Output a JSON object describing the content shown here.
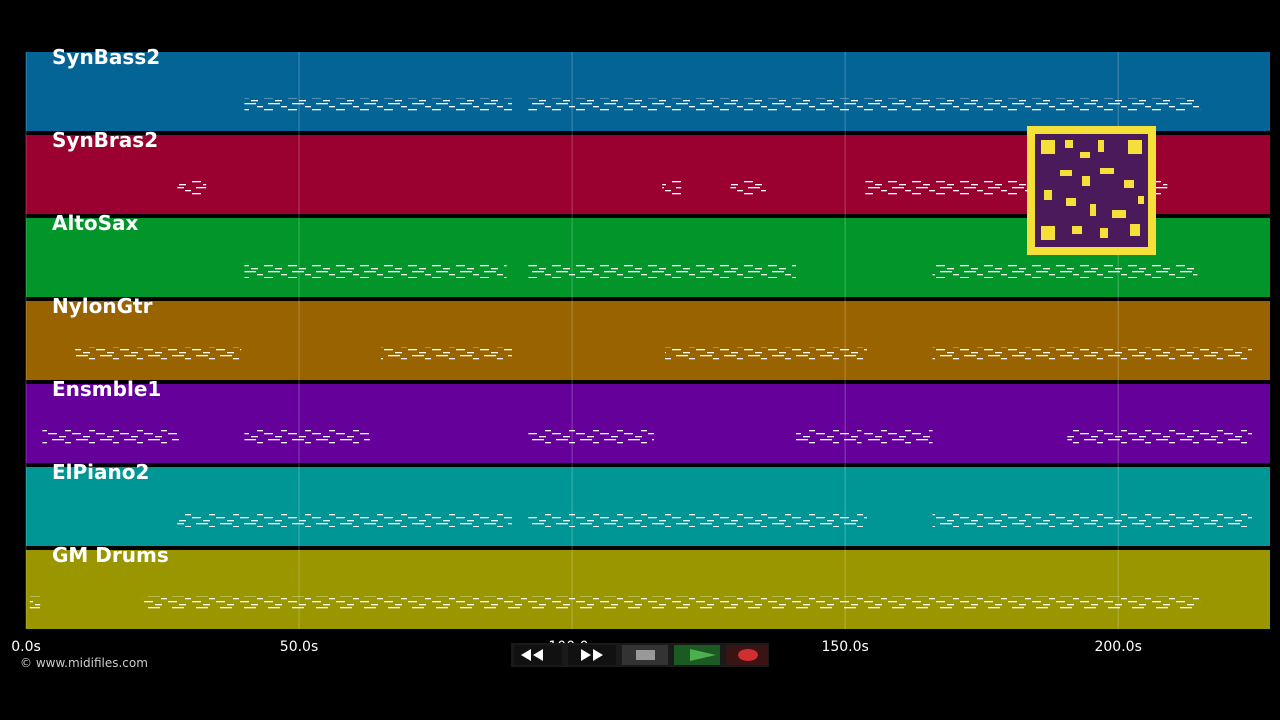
{
  "chart_data": {
    "type": "pianoroll",
    "xlim": [
      0,
      227.8
    ],
    "xticks": [
      {
        "value": 0,
        "label": "0.0s"
      },
      {
        "value": 50,
        "label": "50.0s"
      },
      {
        "value": 100,
        "label": "100.0s"
      },
      {
        "value": 150,
        "label": "150.0s"
      },
      {
        "value": 200,
        "label": "200.0s"
      }
    ],
    "grid": true,
    "tracks": [
      {
        "name": "SynBass2",
        "color": "#046496",
        "segments": [
          [
            40,
            89
          ],
          [
            92,
            215
          ]
        ]
      },
      {
        "name": "SynBras2",
        "color": "#9a0030",
        "segments": [
          [
            27.7,
            33
          ],
          [
            116.5,
            120
          ],
          [
            129,
            135.5
          ],
          [
            153.7,
            209
          ]
        ]
      },
      {
        "name": "AltoSax",
        "color": "#02962a",
        "segments": [
          [
            40,
            88
          ],
          [
            92,
            141
          ],
          [
            166,
            214.5
          ]
        ]
      },
      {
        "name": "NylonGtr",
        "color": "#996300",
        "segments": [
          [
            9,
            39.4
          ],
          [
            65,
            89
          ],
          [
            117,
            154
          ],
          [
            166,
            224.5
          ]
        ]
      },
      {
        "name": "Ensmble1",
        "color": "#65009a",
        "segments": [
          [
            3,
            28
          ],
          [
            40,
            63
          ],
          [
            92,
            115
          ],
          [
            141,
            153
          ],
          [
            153.5,
            166
          ],
          [
            190.7,
            224.5
          ]
        ]
      },
      {
        "name": "ElPiano2",
        "color": "#009696",
        "segments": [
          [
            27.7,
            89
          ],
          [
            92,
            154
          ],
          [
            166,
            224.5
          ]
        ]
      },
      {
        "name": "GM Drums",
        "color": "#999600",
        "segments": [
          [
            0.7,
            2.6
          ],
          [
            21.4,
            215
          ]
        ]
      }
    ]
  },
  "footer": {
    "copyright": "© www.midifiles.com"
  }
}
